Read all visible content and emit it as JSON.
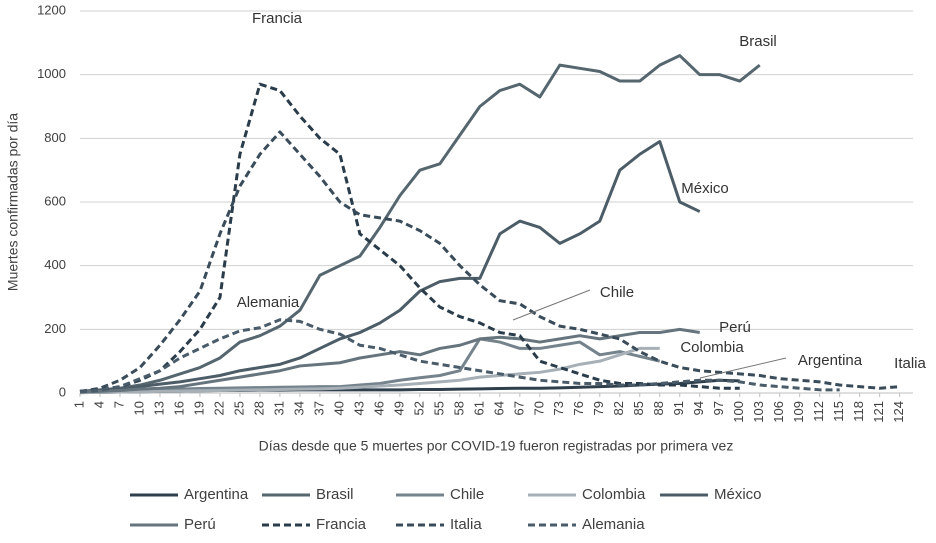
{
  "chart_data": {
    "type": "line",
    "y_label": "Muertes confirmadas por día",
    "x_label": "Días desde que 5 muertes por COVID-19 fueron registradas por primera vez",
    "x": [
      1,
      4,
      7,
      10,
      13,
      16,
      19,
      22,
      25,
      28,
      31,
      34,
      37,
      40,
      43,
      46,
      49,
      52,
      55,
      58,
      61,
      64,
      67,
      70,
      73,
      76,
      79,
      82,
      85,
      88,
      91,
      94,
      97,
      100,
      103,
      106,
      109,
      112,
      115,
      118,
      121,
      124
    ],
    "xlim": [
      1,
      126
    ],
    "xticks": [
      1,
      4,
      7,
      10,
      13,
      16,
      19,
      22,
      25,
      28,
      31,
      34,
      37,
      40,
      43,
      46,
      49,
      52,
      55,
      58,
      61,
      64,
      67,
      70,
      73,
      76,
      79,
      82,
      85,
      88,
      91,
      94,
      97,
      100,
      103,
      106,
      109,
      112,
      115,
      118,
      121,
      124
    ],
    "ylim": [
      0,
      1200
    ],
    "yticks": [
      0,
      200,
      400,
      600,
      800,
      1000,
      1200
    ],
    "grid": true,
    "legend": "bottom",
    "series": [
      {
        "name": "Argentina",
        "color": "#2f3f4b",
        "dash": false,
        "values": [
          1,
          2,
          3,
          4,
          5,
          6,
          7,
          8,
          8,
          9,
          9,
          10,
          10,
          10,
          10,
          10,
          10,
          11,
          11,
          12,
          13,
          14,
          15,
          15,
          16,
          18,
          20,
          22,
          25,
          28,
          30,
          35,
          40,
          38,
          null,
          null,
          null,
          null,
          null,
          null,
          null,
          null
        ]
      },
      {
        "name": "Brasil",
        "color": "#56666f",
        "dash": false,
        "values": [
          5,
          10,
          15,
          25,
          40,
          60,
          80,
          110,
          160,
          180,
          210,
          260,
          370,
          400,
          430,
          520,
          620,
          700,
          720,
          810,
          900,
          950,
          970,
          930,
          1030,
          1020,
          1010,
          980,
          980,
          1030,
          1060,
          1000,
          1000,
          980,
          1030,
          null,
          null,
          null,
          null,
          null,
          null,
          null
        ]
      },
      {
        "name": "Chile",
        "color": "#75838c",
        "dash": false,
        "values": [
          2,
          3,
          5,
          8,
          10,
          12,
          14,
          15,
          16,
          17,
          18,
          19,
          20,
          20,
          25,
          30,
          40,
          48,
          55,
          70,
          170,
          160,
          140,
          140,
          150,
          160,
          120,
          130,
          115,
          100,
          null,
          null,
          null,
          null,
          null,
          null,
          null,
          null,
          null,
          null,
          null,
          null
        ]
      },
      {
        "name": "Colombia",
        "color": "#a7b0b7",
        "dash": false,
        "values": [
          1,
          2,
          3,
          4,
          5,
          6,
          7,
          8,
          9,
          10,
          11,
          12,
          13,
          15,
          18,
          22,
          25,
          30,
          35,
          40,
          50,
          55,
          60,
          65,
          75,
          90,
          100,
          120,
          140,
          140,
          null,
          null,
          null,
          null,
          null,
          null,
          null,
          null,
          null,
          null,
          null,
          null
        ]
      },
      {
        "name": "México",
        "color": "#4d5d68",
        "dash": false,
        "values": [
          5,
          8,
          12,
          20,
          28,
          35,
          45,
          55,
          70,
          80,
          90,
          110,
          140,
          170,
          190,
          220,
          260,
          320,
          350,
          360,
          360,
          500,
          540,
          520,
          470,
          500,
          540,
          700,
          750,
          790,
          600,
          570,
          null,
          null,
          null,
          null,
          null,
          null,
          null,
          null,
          null,
          null
        ]
      },
      {
        "name": "Perú",
        "color": "#66747d",
        "dash": false,
        "values": [
          3,
          5,
          8,
          12,
          15,
          20,
          30,
          40,
          50,
          60,
          70,
          85,
          90,
          95,
          110,
          120,
          130,
          120,
          140,
          150,
          170,
          175,
          170,
          160,
          170,
          180,
          170,
          180,
          190,
          190,
          200,
          190,
          null,
          null,
          null,
          null,
          null,
          null,
          null,
          null,
          null,
          null
        ]
      },
      {
        "name": "Francia",
        "color": "#2a3c4a",
        "dash": true,
        "values": [
          5,
          10,
          20,
          40,
          70,
          130,
          200,
          300,
          750,
          970,
          950,
          870,
          800,
          750,
          500,
          450,
          400,
          330,
          270,
          240,
          220,
          190,
          180,
          100,
          80,
          60,
          40,
          30,
          30,
          25,
          25,
          20,
          15,
          15,
          null,
          null,
          null,
          null,
          null,
          null,
          null,
          null
        ]
      },
      {
        "name": "Italia",
        "color": "#3a4c5a",
        "dash": true,
        "values": [
          5,
          15,
          40,
          80,
          150,
          230,
          320,
          500,
          650,
          750,
          820,
          750,
          680,
          600,
          560,
          550,
          540,
          510,
          470,
          400,
          340,
          290,
          280,
          240,
          210,
          200,
          185,
          170,
          130,
          100,
          80,
          70,
          65,
          60,
          55,
          45,
          40,
          35,
          25,
          20,
          15,
          20
        ]
      },
      {
        "name": "Alemania",
        "color": "#4a5c6a",
        "dash": true,
        "values": [
          3,
          8,
          20,
          45,
          70,
          110,
          140,
          170,
          195,
          205,
          230,
          225,
          200,
          185,
          150,
          140,
          120,
          100,
          90,
          80,
          70,
          60,
          50,
          40,
          35,
          30,
          30,
          25,
          25,
          30,
          35,
          40,
          40,
          35,
          25,
          20,
          15,
          10,
          10,
          null,
          null,
          null
        ]
      }
    ],
    "annotations": [
      "Francia",
      "Brasil",
      "México",
      "Chile",
      "Perú",
      "Colombia",
      "Argentina",
      "Italia",
      "Alemania"
    ]
  }
}
